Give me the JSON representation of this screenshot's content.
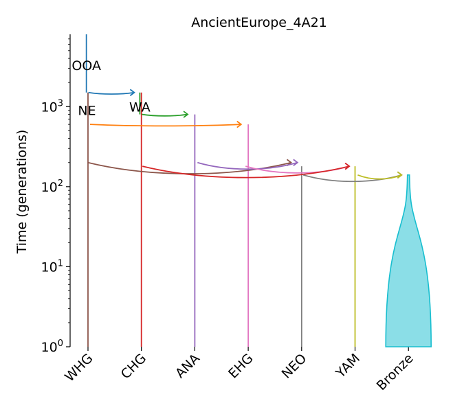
{
  "chart_data": {
    "type": "demography",
    "title": "AncientEurope_4A21",
    "ylabel": "Time (generations)",
    "yscale": "log",
    "ylim": [
      1,
      8000
    ],
    "y_ticks": [
      {
        "value": 1,
        "label": "10^0"
      },
      {
        "value": 10,
        "label": "10^1"
      },
      {
        "value": 100,
        "label": "10^2"
      },
      {
        "value": 1000,
        "label": "10^3"
      }
    ],
    "populations": [
      {
        "name": "WHG",
        "color": "#8c564b",
        "start": 1500,
        "end": 1
      },
      {
        "name": "CHG",
        "color": "#d62728",
        "start": 1500,
        "end": 1
      },
      {
        "name": "ANA",
        "color": "#9467bd",
        "start": 800,
        "end": 1
      },
      {
        "name": "EHG",
        "color": "#e377c2",
        "start": 600,
        "end": 1
      },
      {
        "name": "NEO",
        "color": "#7f7f7f",
        "start": 180,
        "end": 1
      },
      {
        "name": "YAM",
        "color": "#bcbd22",
        "start": 180,
        "end": 1
      },
      {
        "name": "Bronze",
        "color": "#17becf",
        "start": 140,
        "end": 1
      }
    ],
    "ancestral_labels": [
      "OOA",
      "NE",
      "WA"
    ],
    "lineages": [
      {
        "name": "OOA",
        "color": "#1f77b4",
        "x": -0.03,
        "from": 8000,
        "to": 1500
      },
      {
        "name": "WA",
        "color": "#2ca02c",
        "x": 0.97,
        "from": 1500,
        "to": 800
      }
    ],
    "splits": [
      {
        "from": -0.03,
        "to": 0.97,
        "time": 1500,
        "color": "#1f77b4"
      },
      {
        "from": 0.97,
        "to": 1.97,
        "time": 800,
        "color": "#2ca02c"
      },
      {
        "from": 0,
        "to": 2.97,
        "time": 600,
        "color": "#ff7f0e"
      }
    ],
    "admixtures": [
      {
        "from": 0,
        "to": 4,
        "time": 200,
        "color": "#8c564b",
        "src_dx": 0,
        "dst_dx": -0.12
      },
      {
        "from": 2,
        "to": 4,
        "time": 200,
        "color": "#9467bd",
        "src_dx": 0.05,
        "dst_dx": 0
      },
      {
        "from": 2.95,
        "to": 4.95,
        "time": 180,
        "color": "#e377c2",
        "src_dx": 0,
        "dst_dx": 0.02
      },
      {
        "from": 1,
        "to": 4.97,
        "time": 180,
        "color": "#d62728",
        "src_dx": 0.02,
        "dst_dx": 0
      },
      {
        "from": 4,
        "to": 6,
        "time": 140,
        "color": "#7f7f7f",
        "src_dx": 0.03,
        "dst_dx": -0.05
      },
      {
        "from": 5,
        "to": 6,
        "time": 140,
        "color": "#bcbd22",
        "src_dx": 0.05,
        "dst_dx": -0.05
      }
    ]
  }
}
